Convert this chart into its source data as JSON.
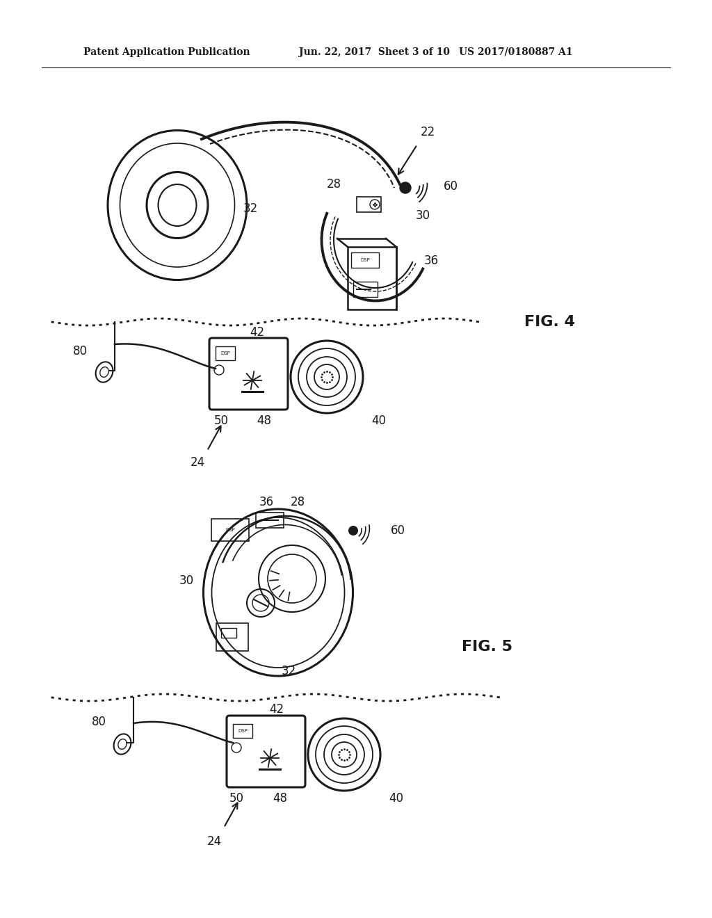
{
  "bg_color": "#ffffff",
  "header_left": "Patent Application Publication",
  "header_mid": "Jun. 22, 2017  Sheet 3 of 10",
  "header_right": "US 2017/0180887 A1",
  "text_color": "#1a1a1a",
  "line_color": "#1a1a1a",
  "fig4_label": "FIG. 4",
  "fig5_label": "FIG. 5"
}
